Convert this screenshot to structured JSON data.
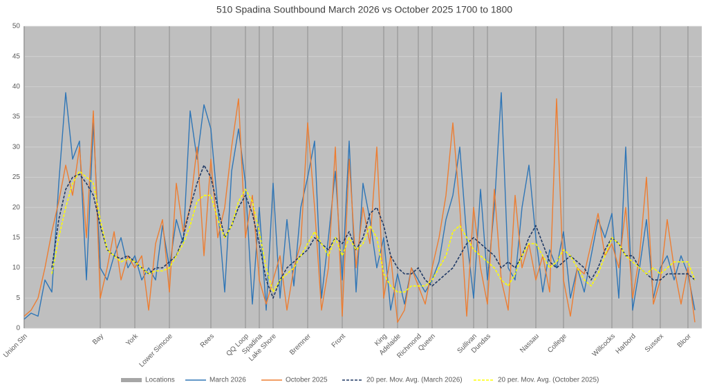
{
  "chart_data": {
    "type": "line",
    "title": "510 Spadina Southbound March 2026 vs October 2025 1700 to 1800",
    "categories": [
      "Union Stn",
      null,
      null,
      null,
      null,
      null,
      null,
      null,
      null,
      null,
      null,
      "Bay",
      null,
      null,
      null,
      null,
      "York",
      null,
      null,
      null,
      null,
      "Lower Simcoe",
      null,
      null,
      null,
      null,
      null,
      "Rees",
      null,
      null,
      null,
      null,
      "QQ Loop",
      null,
      "Spadina",
      null,
      "Lake Shore",
      null,
      null,
      null,
      null,
      "Bremner",
      null,
      null,
      null,
      null,
      "Front",
      null,
      null,
      null,
      null,
      null,
      "King",
      null,
      "Adelaide",
      null,
      null,
      "Richmond",
      null,
      "Queen",
      null,
      null,
      null,
      null,
      null,
      "Sullivan",
      null,
      "Dundas",
      null,
      null,
      null,
      null,
      null,
      null,
      "Nassau",
      null,
      null,
      null,
      "College",
      null,
      null,
      null,
      null,
      null,
      null,
      "Willcocks",
      null,
      null,
      "Harbord",
      null,
      null,
      null,
      "Sussex",
      null,
      null,
      null,
      "Bloor",
      null
    ],
    "series": [
      {
        "name": "Locations",
        "type": "bar",
        "color": "#a6a6a6",
        "values": [
          50,
          null,
          null,
          null,
          null,
          null,
          null,
          null,
          null,
          null,
          null,
          50,
          null,
          null,
          null,
          null,
          50,
          null,
          null,
          null,
          null,
          50,
          null,
          null,
          null,
          null,
          null,
          50,
          null,
          null,
          null,
          null,
          50,
          null,
          50,
          null,
          50,
          null,
          null,
          null,
          null,
          50,
          null,
          null,
          null,
          null,
          50,
          null,
          null,
          null,
          null,
          null,
          50,
          null,
          50,
          null,
          null,
          50,
          null,
          50,
          null,
          null,
          null,
          null,
          null,
          50,
          null,
          50,
          null,
          null,
          null,
          null,
          null,
          null,
          50,
          null,
          null,
          null,
          50,
          null,
          null,
          null,
          null,
          null,
          null,
          50,
          null,
          null,
          50,
          null,
          null,
          null,
          50,
          null,
          null,
          null,
          50,
          null
        ]
      },
      {
        "name": "March 2026",
        "type": "line",
        "dash": false,
        "color": "#2e75b6",
        "values": [
          1.5,
          2.5,
          2,
          8,
          6,
          24,
          39,
          28,
          31,
          8,
          34,
          10,
          8,
          12,
          15,
          10,
          12,
          8,
          10,
          8,
          17,
          10,
          18,
          14,
          36,
          28,
          37,
          33,
          20,
          6,
          26,
          33,
          24,
          4,
          20,
          3,
          24,
          5,
          18,
          7,
          20,
          25,
          31,
          5,
          15,
          26,
          8,
          31,
          6,
          24,
          18,
          10,
          15,
          3,
          9,
          4,
          10,
          8,
          6,
          8,
          11,
          18,
          22,
          30,
          15,
          5,
          23,
          8,
          20,
          39,
          10,
          8,
          20,
          27,
          15,
          6,
          13,
          10,
          16,
          5,
          10,
          6,
          12,
          18,
          15,
          19,
          5,
          30,
          3,
          10,
          18,
          5,
          10,
          12,
          8,
          12,
          9,
          3
        ]
      },
      {
        "name": "October 2025",
        "type": "line",
        "dash": false,
        "color": "#ed7d31",
        "values": [
          2,
          3,
          5,
          10,
          16,
          21,
          27,
          22,
          30,
          15,
          36,
          5,
          10,
          16,
          8,
          12,
          10,
          12,
          3,
          14,
          18,
          6,
          24,
          16,
          20,
          30,
          12,
          28,
          15,
          20,
          30,
          38,
          15,
          22,
          8,
          4,
          8,
          12,
          3,
          10,
          14,
          34,
          20,
          3,
          10,
          30,
          2,
          28,
          10,
          20,
          14,
          30,
          5,
          12,
          1,
          3,
          10,
          7,
          4,
          10,
          15,
          22,
          34,
          20,
          2,
          20,
          10,
          4,
          23,
          8,
          3,
          22,
          10,
          14,
          8,
          12,
          6,
          38,
          8,
          2,
          10,
          9,
          14,
          19,
          12,
          14,
          10,
          20,
          5,
          12,
          25,
          4,
          8,
          18,
          10,
          4,
          10,
          1
        ]
      },
      {
        "name": "20 per. Mov. Avg. (March 2026)",
        "type": "line",
        "dash": true,
        "color": "#1f3864",
        "values": [
          null,
          null,
          null,
          null,
          10,
          18,
          23,
          25,
          25.5,
          24,
          22,
          17,
          13,
          12,
          11.5,
          12,
          11,
          10,
          9,
          10,
          10,
          11,
          12,
          15,
          20,
          24,
          27,
          25,
          20,
          15,
          17,
          20,
          22,
          19,
          14,
          8,
          5,
          8,
          10,
          11,
          12,
          13,
          15,
          14,
          13,
          15,
          14,
          16,
          13,
          15,
          19,
          20,
          17,
          12,
          10,
          9,
          9,
          10,
          8,
          7,
          8,
          9,
          10,
          12,
          14,
          15,
          14,
          13,
          12,
          10,
          11,
          10,
          12,
          15,
          17,
          14,
          11,
          10,
          11,
          12,
          11,
          10,
          8,
          10,
          13,
          15,
          14,
          12,
          12,
          10,
          9,
          8,
          8,
          9,
          9,
          9,
          9,
          8
        ]
      },
      {
        "name": "20 per. Mov. Avg. (October 2025)",
        "type": "line",
        "dash": true,
        "color": "#ffff00",
        "values": [
          null,
          null,
          null,
          null,
          9,
          15,
          20,
          24,
          26,
          25,
          24,
          18,
          13,
          12,
          11,
          11.5,
          11,
          10,
          9,
          9.5,
          9.5,
          10,
          12,
          14,
          17,
          21,
          22,
          22,
          18,
          15,
          17,
          21,
          23,
          21,
          16,
          10,
          6,
          8,
          9,
          10,
          12,
          14,
          16,
          14,
          12,
          15,
          12,
          15,
          13,
          14,
          17,
          15,
          9,
          7,
          6,
          6,
          7,
          7,
          7,
          8,
          10,
          12,
          16,
          17,
          15,
          13,
          12,
          11,
          10,
          8,
          7,
          9,
          12,
          14,
          14,
          12,
          10,
          11,
          13,
          12,
          10,
          8,
          7,
          9,
          12,
          15,
          14,
          12,
          11,
          10,
          9,
          10,
          9,
          10,
          11,
          11,
          11,
          8
        ]
      }
    ],
    "ylim": [
      0,
      50
    ],
    "yticks": [
      0,
      5,
      10,
      15,
      20,
      25,
      30,
      35,
      40,
      45,
      50
    ],
    "grid": true,
    "legend": "bottom"
  }
}
